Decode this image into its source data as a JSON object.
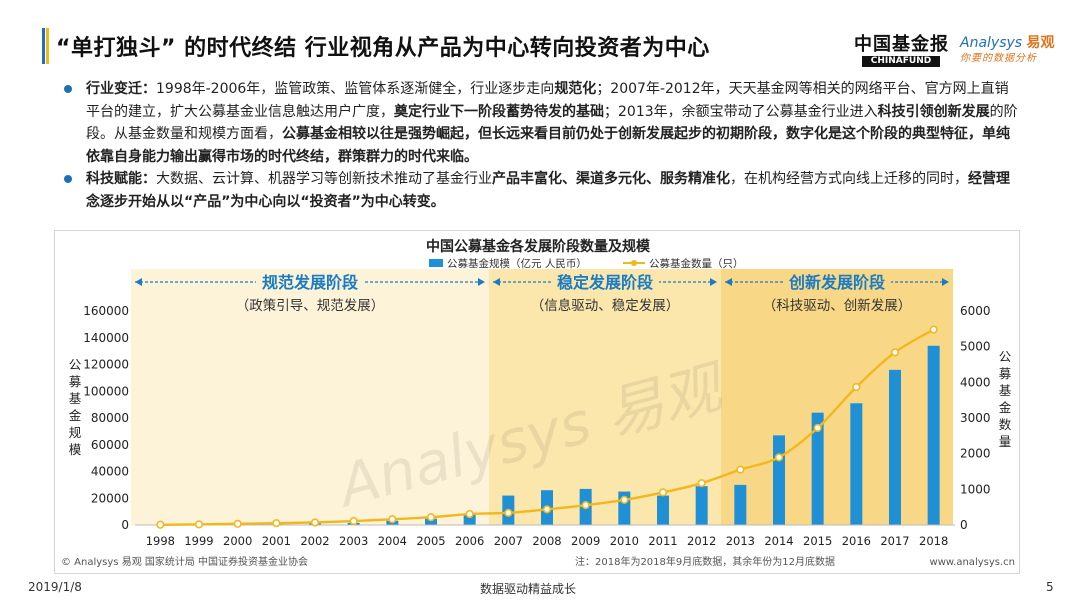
{
  "header": {
    "title": "“单打独斗” 的时代终结 行业视角从产品为中心转向投资者为中心",
    "logo_chinafund_cn": "中国基金报",
    "logo_chinafund_en": "CHINAFUND",
    "logo_analysys_en": "Analysys",
    "logo_analysys_cn": "易观",
    "logo_analysys_slogan": "你要的数据分析"
  },
  "bullets": [
    {
      "lead": "行业变迁：",
      "segments": [
        {
          "t": "1998年-2006年，监管政策、监管体系逐渐健全，行业逐步走向",
          "b": false
        },
        {
          "t": "规范化",
          "b": true
        },
        {
          "t": "；2007年-2012年，天天基金网等相关的网络平台、官方网上直销平台的建立，扩大公募基金业信息触达用户广度，",
          "b": false
        },
        {
          "t": "奠定行业下一阶段蓄势待发的基础",
          "b": true
        },
        {
          "t": "；2013年，余额宝带动了公募基金行业进入",
          "b": false
        },
        {
          "t": "科技引领创新发展",
          "b": true
        },
        {
          "t": "的阶段。从基金数量和规模方面看，",
          "b": false
        },
        {
          "t": "公募基金相较以往是强势崛起，但长远来看目前仍处于创新发展起步的初期阶段，数字化是这个阶段的典型特征，单纯依靠自身能力输出赢得市场的时代终结，群策群力的时代来临。",
          "b": true
        }
      ]
    },
    {
      "lead": "科技赋能：",
      "segments": [
        {
          "t": "大数据、云计算、机器学习等创新技术推动了基金行业",
          "b": false
        },
        {
          "t": "产品丰富化、渠道多元化、服务精准化",
          "b": true
        },
        {
          "t": "，在机构经营方式向线上迁移的同时，",
          "b": false
        },
        {
          "t": "经营理念逐步开始从以“产品”为中心向以“投资者”为中心转变。",
          "b": true
        }
      ]
    }
  ],
  "chart_data": {
    "type": "bar",
    "title": "中国公募基金各发展阶段数量及规模",
    "categories": [
      "1998",
      "1999",
      "2000",
      "2001",
      "2002",
      "2003",
      "2004",
      "2005",
      "2006",
      "2007",
      "2008",
      "2009",
      "2010",
      "2011",
      "2012",
      "2013",
      "2014",
      "2015",
      "2016",
      "2017",
      "2018"
    ],
    "series": [
      {
        "name": "公募基金规模（亿元 人民币）",
        "type": "bar",
        "axis": "left",
        "color": "#1f8fd6",
        "values": [
          100,
          200,
          600,
          800,
          1300,
          1600,
          3200,
          4700,
          8600,
          22000,
          26000,
          27000,
          25000,
          22000,
          29000,
          30000,
          67000,
          84000,
          91000,
          116000,
          134000
        ]
      },
      {
        "name": "公募基金数量（只）",
        "type": "line",
        "axis": "right",
        "color": "#f3b71e",
        "values": [
          6,
          17,
          33,
          51,
          71,
          110,
          161,
          218,
          307,
          341,
          439,
          557,
          704,
          914,
          1173,
          1552,
          1897,
          2722,
          3867,
          4841,
          5480
        ]
      }
    ],
    "ylabel_left": "公募基金规模",
    "ylabel_right": "公募基金数量",
    "ylim_left": [
      0,
      160000
    ],
    "yticks_left": [
      "0",
      "20000",
      "40000",
      "60000",
      "80000",
      "100000",
      "120000",
      "140000",
      "160000"
    ],
    "ylim_right": [
      0,
      6000
    ],
    "yticks_right": [
      "0",
      "1000",
      "2000",
      "3000",
      "4000",
      "5000",
      "6000"
    ],
    "legend_position": "top-center",
    "grid": false,
    "stages": [
      {
        "name": "规范发展阶段",
        "desc": "（政策引导、规范发展）",
        "start": "1998",
        "end": "2006",
        "color": "#fdf3d8"
      },
      {
        "name": "稳定发展阶段",
        "desc": "（信息驱动、稳定发展）",
        "start": "2007",
        "end": "2012",
        "color": "#fbe6ac"
      },
      {
        "name": "创新发展阶段",
        "desc": "（科技驱动、创新发展）",
        "start": "2013",
        "end": "2018",
        "color": "#f8d887"
      }
    ],
    "source": "© Analysys 易观 国家统计局 中国证券投资基金业协会",
    "note": "注：2018年为2018年9月底数据，其余年份为12月底数据",
    "site": "www.analysys.cn",
    "watermark": "Analysys 易观"
  },
  "footer": {
    "date": "2019/1/8",
    "slogan": "数据驱动精益成长",
    "page": "5"
  },
  "colors": {
    "accent_blue": "#1f6fb5",
    "accent_yellow": "#f3b71e",
    "bar_blue": "#1f8fd6",
    "stage_title_blue": "#1a7cc4"
  }
}
